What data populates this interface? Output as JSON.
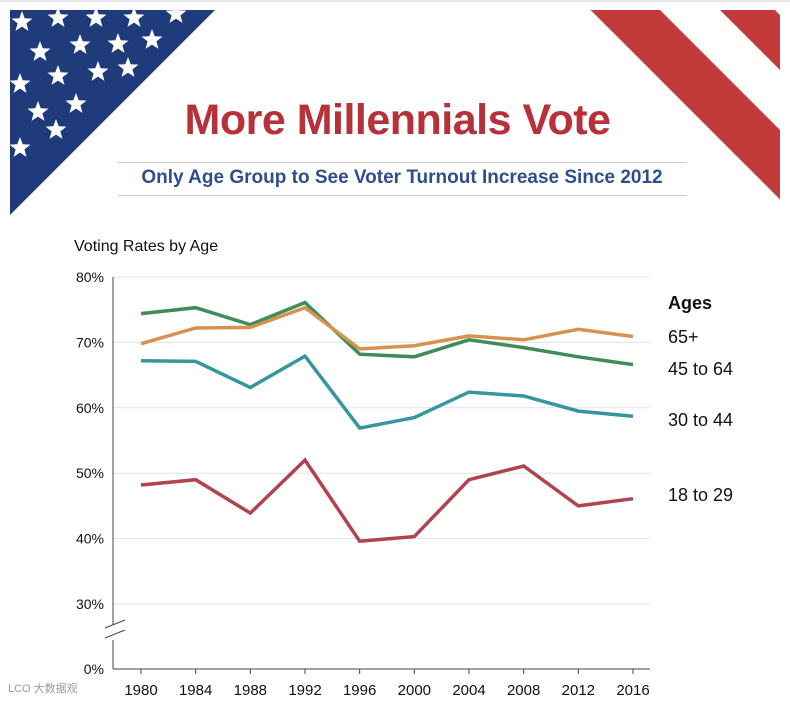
{
  "header": {
    "title": "More Millennials Vote",
    "subtitle": "Only Age Group to See Voter Turnout Increase Since 2012"
  },
  "chart_label": "Voting Rates by Age",
  "legend_title": "Ages",
  "watermark": "LCO 大数据观",
  "colors": {
    "flag_blue": "#1f3b7a",
    "flag_red": "#c23a3a",
    "title_red": "#b7313a",
    "subtitle_blue": "#2f4f8c"
  },
  "chart_data": {
    "type": "line",
    "x": [
      1980,
      1984,
      1988,
      1992,
      1996,
      2000,
      2004,
      2008,
      2012,
      2016
    ],
    "y_ticks": [
      "0%",
      "30%",
      "40%",
      "50%",
      "60%",
      "70%",
      "80%"
    ],
    "y_axis_break": true,
    "ylim": [
      30,
      80
    ],
    "grid": true,
    "legend_placement": "right",
    "series": [
      {
        "name": "65+",
        "color": "#d9914f",
        "values": [
          69.8,
          72.2,
          72.3,
          75.3,
          69.0,
          69.5,
          71.0,
          70.4,
          72.0,
          70.9
        ]
      },
      {
        "name": "45 to 64",
        "color": "#3f8b5a",
        "values": [
          74.4,
          75.3,
          72.7,
          76.1,
          68.2,
          67.8,
          70.4,
          69.2,
          67.8,
          66.6
        ]
      },
      {
        "name": "30 to 44",
        "color": "#35979d",
        "values": [
          67.2,
          67.1,
          63.1,
          67.9,
          56.9,
          58.5,
          62.4,
          61.8,
          59.5,
          58.7
        ]
      },
      {
        "name": "18 to 29",
        "color": "#b1434f",
        "values": [
          48.2,
          49.0,
          43.9,
          52.0,
          39.6,
          40.3,
          49.0,
          51.1,
          45.0,
          46.1
        ]
      }
    ]
  }
}
